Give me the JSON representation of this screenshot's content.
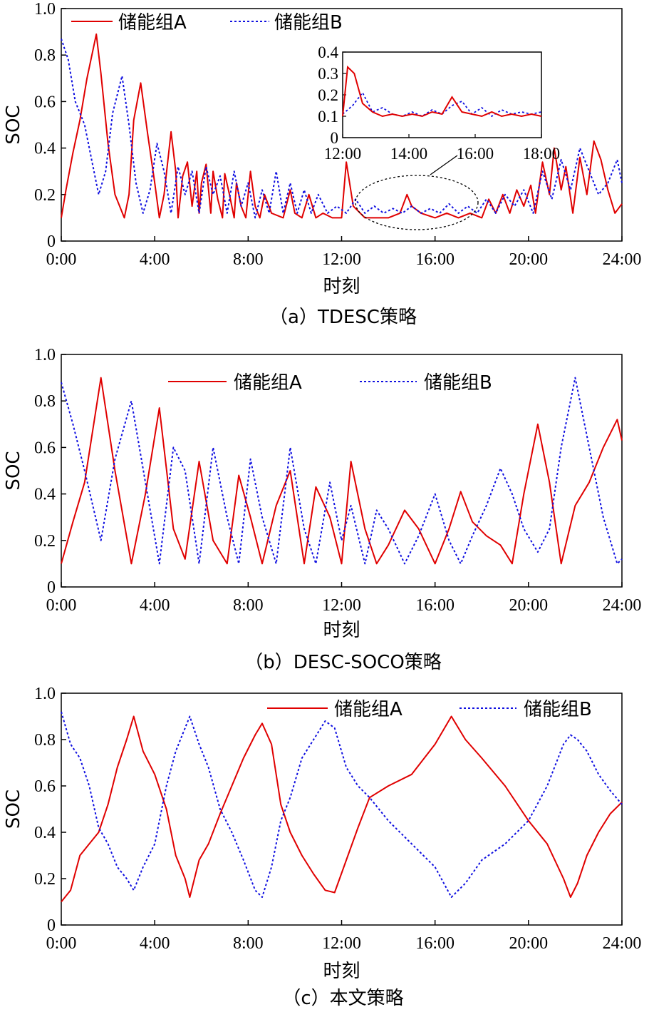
{
  "chart_data": [
    {
      "type": "line",
      "caption": "（a）TDESC策略",
      "xlabel": "时刻",
      "ylabel": "SOC",
      "ylim": [
        0,
        1.0
      ],
      "xlim": [
        0,
        24
      ],
      "x_ticks": [
        "0:00",
        "4:00",
        "8:00",
        "12:00",
        "16:00",
        "20:00",
        "24:00"
      ],
      "y_ticks": [
        "0",
        "0.2",
        "0.4",
        "0.6",
        "0.8",
        "1.0"
      ],
      "legend": "top-left",
      "series": [
        {
          "name": "储能组A",
          "color": "#e00000",
          "style": "solid",
          "x": [
            0.0,
            0.2,
            0.5,
            0.8,
            1.1,
            1.5,
            1.7,
            2.0,
            2.3,
            2.7,
            2.9,
            3.1,
            3.4,
            3.7,
            4.0,
            4.2,
            4.4,
            4.7,
            4.9,
            5.0,
            5.2,
            5.4,
            5.6,
            5.8,
            5.9,
            6.0,
            6.2,
            6.4,
            6.5,
            6.7,
            6.9,
            7.0,
            7.2,
            7.4,
            7.5,
            7.7,
            7.9,
            8.1,
            8.3,
            8.5,
            8.7,
            9.0,
            9.5,
            9.8,
            10.0,
            10.3,
            10.6,
            10.9,
            11.2,
            11.6,
            12.0,
            12.2,
            12.5,
            12.8,
            13.0,
            13.5,
            14.0,
            14.5,
            14.8,
            15.0,
            15.4,
            16.0,
            16.5,
            17.0,
            17.5,
            18.0,
            18.3,
            18.6,
            18.9,
            19.2,
            19.5,
            19.8,
            20.1,
            20.3,
            20.6,
            20.9,
            21.1,
            21.4,
            21.6,
            21.9,
            22.2,
            22.5,
            22.8,
            23.1,
            23.4,
            23.7,
            24.0
          ],
          "y": [
            0.1,
            0.22,
            0.38,
            0.52,
            0.7,
            0.89,
            0.72,
            0.42,
            0.2,
            0.1,
            0.2,
            0.52,
            0.68,
            0.46,
            0.25,
            0.1,
            0.2,
            0.47,
            0.3,
            0.1,
            0.28,
            0.34,
            0.15,
            0.3,
            0.12,
            0.25,
            0.33,
            0.12,
            0.3,
            0.18,
            0.1,
            0.29,
            0.2,
            0.1,
            0.25,
            0.15,
            0.1,
            0.3,
            0.15,
            0.1,
            0.2,
            0.12,
            0.1,
            0.22,
            0.12,
            0.1,
            0.2,
            0.1,
            0.12,
            0.1,
            0.1,
            0.34,
            0.15,
            0.12,
            0.1,
            0.1,
            0.1,
            0.12,
            0.2,
            0.15,
            0.12,
            0.1,
            0.12,
            0.1,
            0.12,
            0.1,
            0.18,
            0.12,
            0.2,
            0.12,
            0.22,
            0.15,
            0.24,
            0.12,
            0.34,
            0.2,
            0.4,
            0.22,
            0.32,
            0.12,
            0.36,
            0.2,
            0.43,
            0.35,
            0.22,
            0.12,
            0.16
          ]
        },
        {
          "name": "储能组B",
          "color": "#1010e0",
          "style": "dotted",
          "x": [
            0.0,
            0.3,
            0.6,
            1.0,
            1.3,
            1.6,
            1.9,
            2.2,
            2.6,
            2.9,
            3.2,
            3.5,
            3.8,
            4.1,
            4.4,
            4.7,
            5.0,
            5.3,
            5.6,
            5.9,
            6.2,
            6.5,
            6.8,
            7.1,
            7.4,
            7.7,
            8.0,
            8.3,
            8.6,
            8.9,
            9.2,
            9.5,
            9.8,
            10.1,
            10.4,
            10.7,
            11.0,
            11.4,
            11.8,
            12.2,
            12.6,
            13.0,
            13.4,
            13.8,
            14.2,
            14.6,
            15.0,
            15.4,
            15.8,
            16.2,
            16.6,
            17.0,
            17.4,
            17.8,
            18.2,
            18.6,
            19.0,
            19.4,
            19.8,
            20.2,
            20.6,
            21.0,
            21.4,
            21.8,
            22.2,
            22.6,
            23.0,
            23.4,
            23.8,
            24.0
          ],
          "y": [
            0.87,
            0.78,
            0.6,
            0.5,
            0.35,
            0.2,
            0.3,
            0.55,
            0.71,
            0.5,
            0.25,
            0.12,
            0.22,
            0.42,
            0.3,
            0.12,
            0.32,
            0.2,
            0.3,
            0.12,
            0.32,
            0.2,
            0.28,
            0.12,
            0.3,
            0.15,
            0.25,
            0.1,
            0.22,
            0.12,
            0.3,
            0.12,
            0.25,
            0.12,
            0.22,
            0.12,
            0.2,
            0.12,
            0.15,
            0.12,
            0.18,
            0.12,
            0.15,
            0.12,
            0.14,
            0.12,
            0.15,
            0.12,
            0.14,
            0.12,
            0.16,
            0.12,
            0.15,
            0.12,
            0.18,
            0.12,
            0.2,
            0.15,
            0.22,
            0.12,
            0.3,
            0.18,
            0.35,
            0.22,
            0.4,
            0.3,
            0.2,
            0.25,
            0.35,
            0.25
          ]
        }
      ],
      "inset": {
        "xlim": [
          12,
          18
        ],
        "ylim": [
          0,
          0.4
        ],
        "x_ticks": [
          "12:00",
          "14:00",
          "16:00",
          "18:00"
        ],
        "y_ticks": [
          "0",
          "0.1",
          "0.2",
          "0.3",
          "0.4"
        ],
        "series_A_x": [
          12.0,
          12.15,
          12.35,
          12.6,
          12.9,
          13.2,
          13.5,
          13.8,
          14.1,
          14.4,
          14.7,
          15.0,
          15.3,
          15.6,
          15.9,
          16.2,
          16.5,
          16.8,
          17.1,
          17.4,
          17.7,
          18.0
        ],
        "series_A_y": [
          0.1,
          0.33,
          0.3,
          0.16,
          0.12,
          0.1,
          0.11,
          0.1,
          0.11,
          0.1,
          0.12,
          0.11,
          0.19,
          0.12,
          0.11,
          0.1,
          0.12,
          0.1,
          0.11,
          0.1,
          0.11,
          0.1
        ],
        "series_B_x": [
          12.0,
          12.3,
          12.6,
          12.9,
          13.2,
          13.5,
          13.8,
          14.1,
          14.4,
          14.7,
          15.0,
          15.3,
          15.6,
          15.9,
          16.2,
          16.5,
          16.8,
          17.1,
          17.4,
          17.7,
          18.0
        ],
        "series_B_y": [
          0.11,
          0.15,
          0.21,
          0.12,
          0.14,
          0.11,
          0.1,
          0.12,
          0.1,
          0.13,
          0.11,
          0.15,
          0.17,
          0.11,
          0.14,
          0.1,
          0.13,
          0.11,
          0.12,
          0.11,
          0.12
        ]
      }
    },
    {
      "type": "line",
      "caption": "（b）DESC-SOCO策略",
      "xlabel": "时刻",
      "ylabel": "SOC",
      "ylim": [
        0,
        1.0
      ],
      "xlim": [
        0,
        24
      ],
      "x_ticks": [
        "0:00",
        "4:00",
        "8:00",
        "12:00",
        "16:00",
        "20:00",
        "24:00"
      ],
      "y_ticks": [
        "0",
        "0.2",
        "0.4",
        "0.6",
        "0.8",
        "1.0"
      ],
      "legend": "top",
      "series": [
        {
          "name": "储能组A",
          "color": "#e00000",
          "style": "solid",
          "x": [
            0.0,
            0.5,
            1.0,
            1.7,
            2.3,
            3.0,
            3.6,
            4.2,
            4.8,
            5.3,
            5.9,
            6.5,
            7.1,
            7.6,
            8.1,
            8.6,
            9.2,
            9.8,
            10.4,
            10.9,
            11.5,
            12.0,
            12.4,
            13.0,
            13.5,
            14.0,
            14.7,
            15.3,
            16.0,
            16.6,
            17.1,
            17.6,
            18.2,
            18.8,
            19.3,
            19.8,
            20.4,
            20.9,
            21.4,
            22.0,
            22.6,
            23.2,
            23.8,
            24.0
          ],
          "y": [
            0.1,
            0.28,
            0.45,
            0.9,
            0.5,
            0.1,
            0.4,
            0.77,
            0.25,
            0.12,
            0.54,
            0.2,
            0.1,
            0.48,
            0.3,
            0.1,
            0.35,
            0.5,
            0.1,
            0.43,
            0.3,
            0.1,
            0.54,
            0.25,
            0.1,
            0.18,
            0.33,
            0.25,
            0.1,
            0.25,
            0.41,
            0.28,
            0.22,
            0.18,
            0.1,
            0.4,
            0.7,
            0.45,
            0.1,
            0.35,
            0.45,
            0.6,
            0.72,
            0.63
          ]
        },
        {
          "name": "储能组B",
          "color": "#1010e0",
          "style": "dotted",
          "x": [
            0.0,
            0.5,
            1.0,
            1.7,
            2.3,
            3.0,
            3.6,
            4.2,
            4.8,
            5.3,
            5.9,
            6.5,
            7.1,
            7.6,
            8.1,
            8.6,
            9.2,
            9.8,
            10.4,
            10.9,
            11.5,
            12.0,
            12.4,
            13.0,
            13.5,
            14.0,
            14.7,
            15.3,
            16.0,
            16.6,
            17.1,
            17.6,
            18.2,
            18.8,
            19.3,
            19.8,
            20.4,
            20.9,
            21.4,
            22.0,
            22.6,
            23.2,
            23.8,
            24.0
          ],
          "y": [
            0.88,
            0.7,
            0.5,
            0.2,
            0.55,
            0.8,
            0.45,
            0.1,
            0.6,
            0.5,
            0.1,
            0.6,
            0.3,
            0.1,
            0.55,
            0.3,
            0.1,
            0.6,
            0.25,
            0.1,
            0.45,
            0.2,
            0.35,
            0.1,
            0.33,
            0.25,
            0.1,
            0.22,
            0.4,
            0.2,
            0.1,
            0.22,
            0.35,
            0.51,
            0.4,
            0.25,
            0.15,
            0.25,
            0.6,
            0.9,
            0.6,
            0.3,
            0.1,
            0.12
          ]
        }
      ]
    },
    {
      "type": "line",
      "caption": "（c）本文策略",
      "xlabel": "时刻",
      "ylabel": "SOC",
      "ylim": [
        0,
        1.0
      ],
      "xlim": [
        0,
        24
      ],
      "x_ticks": [
        "0:00",
        "4:00",
        "8:00",
        "12:00",
        "16:00",
        "20:00",
        "24:00"
      ],
      "y_ticks": [
        "0",
        "0.2",
        "0.4",
        "0.6",
        "0.8",
        "1.0"
      ],
      "legend": "top-right",
      "series": [
        {
          "name": "储能组A",
          "color": "#e00000",
          "style": "solid",
          "x": [
            0.0,
            0.4,
            0.8,
            1.2,
            1.6,
            2.0,
            2.4,
            2.8,
            3.1,
            3.5,
            4.0,
            4.5,
            4.9,
            5.3,
            5.5,
            5.9,
            6.3,
            6.8,
            7.3,
            7.8,
            8.3,
            8.6,
            9.0,
            9.4,
            9.8,
            10.3,
            10.8,
            11.3,
            11.7,
            12.2,
            12.7,
            13.2,
            14.0,
            15.0,
            16.0,
            16.7,
            17.3,
            18.0,
            19.0,
            20.0,
            20.8,
            21.5,
            21.8,
            22.1,
            22.5,
            23.0,
            23.5,
            24.0
          ],
          "y": [
            0.1,
            0.15,
            0.3,
            0.35,
            0.4,
            0.52,
            0.68,
            0.8,
            0.9,
            0.75,
            0.65,
            0.5,
            0.3,
            0.2,
            0.12,
            0.28,
            0.35,
            0.48,
            0.6,
            0.72,
            0.82,
            0.87,
            0.78,
            0.52,
            0.4,
            0.3,
            0.22,
            0.15,
            0.14,
            0.28,
            0.42,
            0.55,
            0.6,
            0.65,
            0.78,
            0.9,
            0.8,
            0.72,
            0.6,
            0.45,
            0.35,
            0.2,
            0.12,
            0.18,
            0.3,
            0.4,
            0.48,
            0.53
          ]
        },
        {
          "name": "储能组B",
          "color": "#1010e0",
          "style": "dotted",
          "x": [
            0.0,
            0.4,
            0.8,
            1.2,
            1.6,
            2.0,
            2.4,
            2.8,
            3.1,
            3.5,
            4.0,
            4.5,
            4.9,
            5.3,
            5.5,
            5.9,
            6.3,
            6.8,
            7.3,
            7.8,
            8.3,
            8.6,
            9.0,
            9.4,
            9.8,
            10.3,
            10.8,
            11.3,
            11.7,
            12.2,
            12.7,
            13.2,
            14.0,
            15.0,
            16.0,
            16.7,
            17.3,
            18.0,
            19.0,
            20.0,
            20.8,
            21.5,
            21.8,
            22.1,
            22.5,
            23.0,
            23.5,
            24.0
          ],
          "y": [
            0.92,
            0.78,
            0.72,
            0.6,
            0.42,
            0.35,
            0.25,
            0.2,
            0.15,
            0.25,
            0.35,
            0.6,
            0.75,
            0.85,
            0.9,
            0.78,
            0.68,
            0.5,
            0.4,
            0.28,
            0.15,
            0.12,
            0.25,
            0.45,
            0.55,
            0.72,
            0.8,
            0.88,
            0.85,
            0.68,
            0.6,
            0.55,
            0.45,
            0.35,
            0.25,
            0.12,
            0.18,
            0.28,
            0.35,
            0.45,
            0.6,
            0.78,
            0.82,
            0.8,
            0.75,
            0.65,
            0.58,
            0.52
          ]
        }
      ]
    }
  ]
}
